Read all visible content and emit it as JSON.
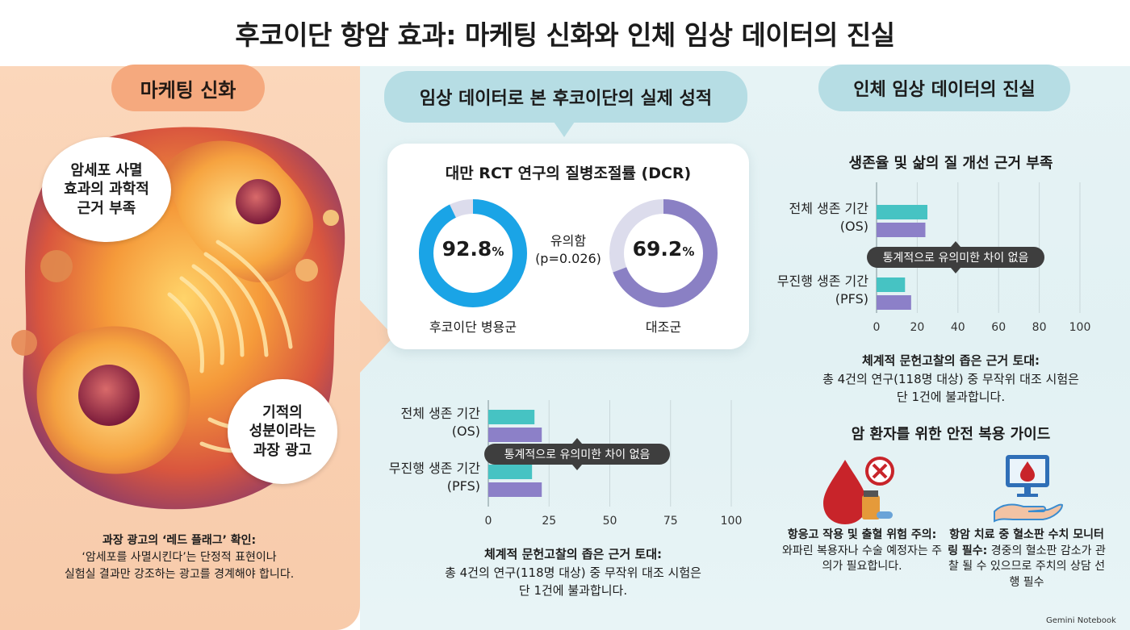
{
  "header": {
    "title": "후코이단 항암 효과: 마케팅 신화와 인체 임상 데이터의 진실"
  },
  "left": {
    "pill": "마케팅 신화",
    "bubble_1": [
      "암세포 사멸",
      "효과의 과학적",
      "근거 부족"
    ],
    "bubble_2": [
      "기적의",
      "성분이라는",
      "과장 광고"
    ],
    "red_flag_title": "과장 광고의 ‘레드 플래그’ 확인:",
    "red_flag_body": [
      "‘암세포를 사멸시킨다’는 단정적 표현이나",
      "실험실 결과만 강조하는 광고를 경계해야 합니다."
    ]
  },
  "center": {
    "pill": "임상 데이터로 본 후코이단의 실제 성적",
    "dcr": {
      "title": "대만 RCT 연구의 질병조절률 (DCR)",
      "group_a": {
        "label": "후코이단 병용군",
        "value": 92.8,
        "display": "92.8",
        "unit": "%"
      },
      "group_b": {
        "label": "대조군",
        "value": 69.2,
        "display": "69.2",
        "unit": "%"
      },
      "significance": [
        "유의함",
        "(p=0.026)"
      ]
    },
    "caption_title": "체계적 문헌고찰의 좁은 근거 토대:",
    "caption_body": [
      "총 4건의 연구(118명 대상) 중 무작위 대조 시험은",
      "단 1건에 불과합니다."
    ]
  },
  "right": {
    "pill": "인체 임상 데이터의 진실",
    "heading_1": "생존율 및 삶의 질 개선 근거 부족",
    "caption_title": "체계적 문헌고찰의 좁은 근거 토대:",
    "caption_body": [
      "총 4건의 연구(118명 대상) 중 무작위 대조 시험은",
      "단 1건에 불과합니다."
    ],
    "heading_2": "암 환자를 위한 안전 복용 가이드",
    "guide_1_bold": "항응고 작용 및 출혈 위험 주의:",
    "guide_1_body": "와파린 복용자나 수술 예정자는 주의가 필요합니다.",
    "guide_2_bold": "항암 치료 중 혈소판 수치 모니터링 필수:",
    "guide_2_body": "경중의 혈소판 감소가 관찰 될 수 있으므로 주치의 상담 선행 필수"
  },
  "watermark": "Gemini Notebook",
  "colors": {
    "teal": "#46c3c3",
    "purple": "#8c80c8",
    "ring_blue": "#1aa4e6",
    "ring_purple": "#8a80c4",
    "ring_track": "#dcdcec"
  },
  "chart_data": [
    {
      "type": "bar",
      "orientation": "horizontal",
      "categories": [
        "전체 생존 기간\n(OS)",
        "무진행 생존 기간\n(PFS)"
      ],
      "series": [
        {
          "values": [
            19,
            18
          ]
        },
        {
          "values": [
            22,
            22
          ]
        }
      ],
      "xlim": [
        0,
        100
      ],
      "xticks": [
        0,
        25,
        50,
        75,
        100
      ],
      "annotation": "통계적으로 유의미한 차이 없음"
    },
    {
      "type": "bar",
      "orientation": "horizontal",
      "categories": [
        "전체 생존 기간\n(OS)",
        "무진행 생존 기간\n(PFS)"
      ],
      "series": [
        {
          "values": [
            25,
            14
          ]
        },
        {
          "values": [
            24,
            17
          ]
        }
      ],
      "xlim": [
        0,
        100
      ],
      "xticks": [
        0,
        20,
        40,
        60,
        80,
        100
      ],
      "annotation": "통계적으로 유의미한 차이 없음"
    }
  ]
}
